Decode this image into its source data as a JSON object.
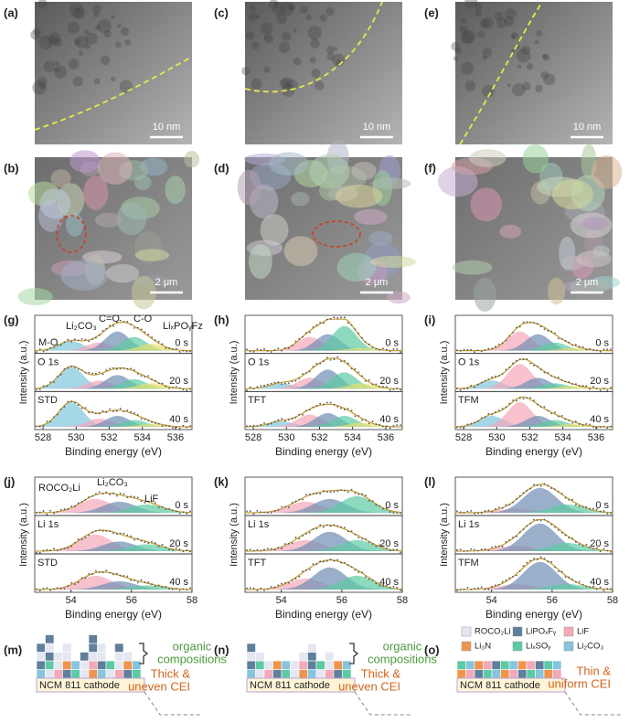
{
  "tem": [
    {
      "label": "(a)",
      "scale": "10 nm"
    },
    {
      "label": "(c)",
      "scale": "10 nm"
    },
    {
      "label": "(e)",
      "scale": "10 nm"
    }
  ],
  "sem": [
    {
      "label": "(b)",
      "scale": "2 μm"
    },
    {
      "label": "(d)",
      "scale": "2 μm"
    },
    {
      "label": "(f)",
      "scale": "2 μm"
    }
  ],
  "o1s": {
    "element": "O 1s",
    "xlabel": "Binding energy (eV)",
    "ylabel": "Intensity (a.u.)",
    "xlim": [
      527.5,
      537
    ],
    "xticks": [
      528,
      530,
      532,
      534,
      536
    ],
    "panels": [
      {
        "label": "(g)",
        "sample": "STD",
        "times": [
          "0 s",
          "20 s",
          "40 s"
        ],
        "species": [
          "M-O",
          "Li₂CO₃",
          "C=O",
          "C-O",
          "LiₓPOᵧFz"
        ]
      },
      {
        "label": "(h)",
        "sample": "TFT",
        "times": [
          "0 s",
          "20 s",
          "40 s"
        ]
      },
      {
        "label": "(i)",
        "sample": "TFM",
        "times": [
          "0 s",
          "20 s",
          "40 s"
        ]
      }
    ]
  },
  "li1s": {
    "element": "Li 1s",
    "xlabel": "Binding energy (eV)",
    "ylabel": "Intensity (a.u.)",
    "xlim": [
      52.8,
      58
    ],
    "xticks": [
      54,
      56,
      58
    ],
    "panels": [
      {
        "label": "(j)",
        "sample": "STD",
        "times": [
          "0 s",
          "20 s",
          "40 s"
        ],
        "species": [
          "ROCO₂Li",
          "Li₂CO₃",
          "LiF"
        ]
      },
      {
        "label": "(k)",
        "sample": "TFT",
        "times": [
          "0 s",
          "20 s",
          "40 s"
        ]
      },
      {
        "label": "(l)",
        "sample": "TFM",
        "times": [
          "0 s",
          "20 s",
          "40 s"
        ]
      }
    ]
  },
  "schematic": [
    {
      "label": "(m)",
      "cathode": "NCM 811 cathode",
      "organic": [
        "organic",
        "compositions"
      ],
      "cei": [
        "Thick &",
        "uneven  CEI"
      ]
    },
    {
      "label": "(n)",
      "cathode": "NCM 811 cathode",
      "organic": [
        "organic",
        "compositions"
      ],
      "cei": [
        "Thick &",
        "uneven  CEI"
      ]
    },
    {
      "label": "(o)",
      "cathode": "NCM 811 cathode",
      "cei": [
        "Thin &",
        "uniform CEI"
      ]
    }
  ],
  "legend": [
    {
      "name": "ROCO₂Li",
      "color": "#e4e7f1"
    },
    {
      "name": "LiPOₓFᵧ",
      "color": "#5f7f9c"
    },
    {
      "name": "LiF",
      "color": "#f4a9b8"
    },
    {
      "name": "Li₃N",
      "color": "#f0944c"
    },
    {
      "name": "LiₓSOᵧ",
      "color": "#5ccaa4"
    },
    {
      "name": "Li₂CO₃",
      "color": "#86c5dd"
    }
  ]
}
